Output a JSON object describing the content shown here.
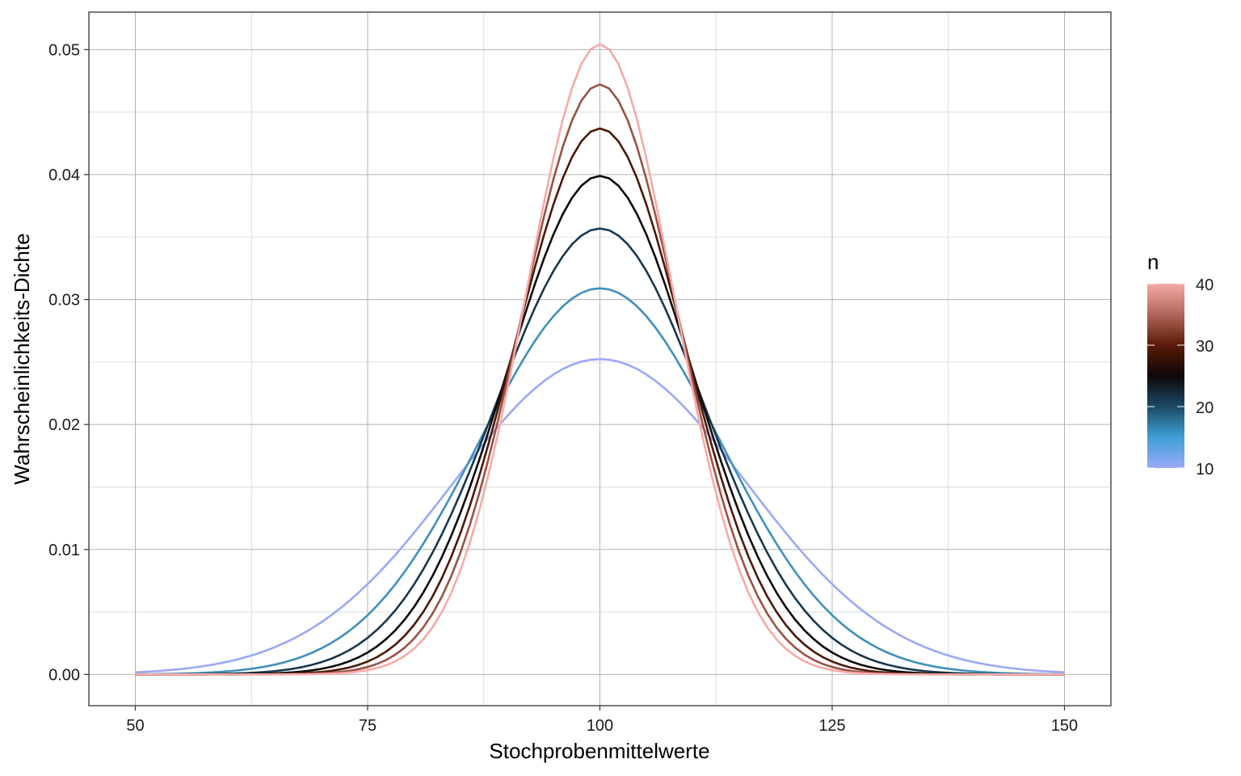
{
  "chart_data": {
    "type": "line",
    "title": "",
    "xlabel": "Stochprobenmittelwerte",
    "ylabel": "Wahrscheinlichkeits-Dichte",
    "xlim": [
      45,
      155
    ],
    "ylim": [
      -0.0025,
      0.053
    ],
    "x_ticks": [
      50,
      75,
      100,
      125,
      150
    ],
    "y_ticks": [
      0.0,
      0.01,
      0.02,
      0.03,
      0.04,
      0.05
    ],
    "x_tick_labels": [
      "50",
      "75",
      "100",
      "125",
      "150"
    ],
    "y_tick_labels": [
      "0.00",
      "0.01",
      "0.02",
      "0.03",
      "0.04",
      "0.05"
    ],
    "grid": true,
    "x_range": [
      50,
      150
    ],
    "distribution": "normal, mean 100, sd 100/sqrt(n)",
    "series": [
      {
        "n": 10,
        "mean": 100,
        "sd": 15.81,
        "color": "#9aa9f8"
      },
      {
        "n": 15,
        "mean": 100,
        "sd": 12.91,
        "color": "#3f8fbd"
      },
      {
        "n": 20,
        "mean": 100,
        "sd": 11.18,
        "color": "#17384f"
      },
      {
        "n": 25,
        "mean": 100,
        "sd": 10.0,
        "color": "#0f0a0a"
      },
      {
        "n": 30,
        "mean": 100,
        "sd": 9.13,
        "color": "#4a1808"
      },
      {
        "n": 35,
        "mean": 100,
        "sd": 8.45,
        "color": "#9a5244"
      },
      {
        "n": 40,
        "mean": 100,
        "sd": 7.91,
        "color": "#f7aaa8"
      }
    ],
    "legend": {
      "title": "n",
      "placement": "right",
      "type": "colorbar",
      "limits": [
        10,
        40
      ],
      "breaks": [
        "10",
        "20",
        "30",
        "40"
      ],
      "gradient": [
        {
          "value": 10,
          "color": "#9aa9f8"
        },
        {
          "value": 15,
          "color": "#3f9fd4"
        },
        {
          "value": 20,
          "color": "#1b4a66"
        },
        {
          "value": 25,
          "color": "#0e0808"
        },
        {
          "value": 30,
          "color": "#5a1a06"
        },
        {
          "value": 35,
          "color": "#b0665a"
        },
        {
          "value": 40,
          "color": "#f7aaa8"
        }
      ]
    }
  }
}
